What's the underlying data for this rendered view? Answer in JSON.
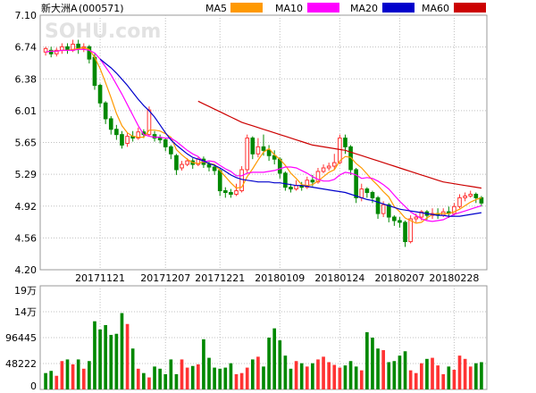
{
  "header": {
    "stock_name": "新大洲A",
    "stock_code": "(000571)",
    "watermark": "SOHU.com"
  },
  "legend": [
    {
      "label": "MA5",
      "color": "#ff9900"
    },
    {
      "label": "MA10",
      "color": "#ff00ff"
    },
    {
      "label": "MA20",
      "color": "#0000cc"
    },
    {
      "label": "MA60",
      "color": "#cc0000"
    }
  ],
  "colors": {
    "up": "#ff3333",
    "down": "#008800",
    "grid": "#c0c0c0"
  },
  "chart_data": [
    {
      "type": "candlestick",
      "title": "新大洲A (000571)",
      "ylim": [
        4.2,
        7.1
      ],
      "y_ticks": [
        "7.10",
        "6.74",
        "6.38",
        "6.01",
        "5.65",
        "5.29",
        "4.92",
        "4.56",
        "4.20"
      ],
      "x_tick_labels": [
        {
          "label": "20171121",
          "index": 10
        },
        {
          "label": "20171207",
          "index": 22
        },
        {
          "label": "20171221",
          "index": 32
        },
        {
          "label": "20180109",
          "index": 43
        },
        {
          "label": "20180124",
          "index": 54
        },
        {
          "label": "20180207",
          "index": 65
        },
        {
          "label": "20180228",
          "index": 75
        }
      ],
      "candles": [
        [
          6.68,
          6.72,
          6.64,
          6.74
        ],
        [
          6.7,
          6.66,
          6.62,
          6.74
        ],
        [
          6.66,
          6.7,
          6.63,
          6.73
        ],
        [
          6.7,
          6.74,
          6.66,
          6.78
        ],
        [
          6.74,
          6.7,
          6.66,
          6.78
        ],
        [
          6.7,
          6.77,
          6.68,
          6.82
        ],
        [
          6.77,
          6.72,
          6.66,
          6.82
        ],
        [
          6.72,
          6.74,
          6.68,
          6.78
        ],
        [
          6.74,
          6.6,
          6.55,
          6.76
        ],
        [
          6.62,
          6.3,
          6.25,
          6.66
        ],
        [
          6.3,
          6.1,
          6.05,
          6.32
        ],
        [
          6.1,
          5.92,
          5.86,
          6.12
        ],
        [
          5.92,
          5.8,
          5.74,
          5.95
        ],
        [
          5.8,
          5.74,
          5.68,
          5.85
        ],
        [
          5.74,
          5.62,
          5.58,
          5.78
        ],
        [
          5.64,
          5.72,
          5.6,
          5.76
        ],
        [
          5.72,
          5.7,
          5.66,
          5.78
        ],
        [
          5.7,
          5.77,
          5.68,
          5.82
        ],
        [
          5.77,
          5.74,
          5.7,
          5.8
        ],
        [
          5.74,
          6.02,
          5.72,
          6.06
        ],
        [
          5.74,
          5.7,
          5.66,
          5.78
        ],
        [
          5.7,
          5.68,
          5.64,
          5.74
        ],
        [
          5.68,
          5.6,
          5.55,
          5.7
        ],
        [
          5.6,
          5.52,
          5.46,
          5.62
        ],
        [
          5.5,
          5.34,
          5.28,
          5.52
        ],
        [
          5.36,
          5.4,
          5.33,
          5.44
        ],
        [
          5.4,
          5.44,
          5.38,
          5.47
        ],
        [
          5.44,
          5.4,
          5.35,
          5.47
        ],
        [
          5.4,
          5.46,
          5.38,
          5.48
        ],
        [
          5.46,
          5.4,
          5.36,
          5.49
        ],
        [
          5.4,
          5.37,
          5.32,
          5.43
        ],
        [
          5.37,
          5.33,
          5.28,
          5.4
        ],
        [
          5.33,
          5.1,
          5.04,
          5.36
        ],
        [
          5.1,
          5.08,
          5.02,
          5.14
        ],
        [
          5.08,
          5.06,
          5.02,
          5.12
        ],
        [
          5.06,
          5.1,
          5.04,
          5.18
        ],
        [
          5.1,
          5.34,
          5.08,
          5.38
        ],
        [
          5.34,
          5.7,
          5.3,
          5.74
        ],
        [
          5.7,
          5.52,
          5.46,
          5.72
        ],
        [
          5.52,
          5.6,
          5.48,
          5.7
        ],
        [
          5.6,
          5.56,
          5.5,
          5.74
        ],
        [
          5.56,
          5.5,
          5.44,
          5.62
        ],
        [
          5.5,
          5.46,
          5.4,
          5.56
        ],
        [
          5.46,
          5.3,
          5.24,
          5.48
        ],
        [
          5.3,
          5.14,
          5.1,
          5.32
        ],
        [
          5.14,
          5.12,
          5.08,
          5.18
        ],
        [
          5.12,
          5.16,
          5.1,
          5.22
        ],
        [
          5.16,
          5.14,
          5.1,
          5.2
        ],
        [
          5.14,
          5.22,
          5.12,
          5.26
        ],
        [
          5.22,
          5.2,
          5.15,
          5.28
        ],
        [
          5.2,
          5.32,
          5.18,
          5.36
        ],
        [
          5.32,
          5.36,
          5.3,
          5.4
        ],
        [
          5.36,
          5.38,
          5.33,
          5.42
        ],
        [
          5.38,
          5.42,
          5.34,
          5.52
        ],
        [
          5.42,
          5.7,
          5.4,
          5.74
        ],
        [
          5.7,
          5.6,
          5.52,
          5.74
        ],
        [
          5.6,
          5.34,
          5.28,
          5.62
        ],
        [
          5.34,
          5.02,
          4.96,
          5.36
        ],
        [
          5.02,
          5.12,
          4.98,
          5.18
        ],
        [
          5.12,
          5.08,
          5.02,
          5.14
        ],
        [
          5.08,
          5.02,
          4.96,
          5.1
        ],
        [
          5.02,
          4.84,
          4.78,
          5.04
        ],
        [
          4.84,
          4.94,
          4.8,
          4.98
        ],
        [
          4.94,
          4.8,
          4.74,
          4.96
        ],
        [
          4.8,
          4.76,
          4.7,
          4.82
        ],
        [
          4.76,
          4.74,
          4.68,
          4.8
        ],
        [
          4.74,
          4.52,
          4.46,
          4.76
        ],
        [
          4.52,
          4.78,
          4.5,
          4.82
        ],
        [
          4.78,
          4.8,
          4.74,
          4.84
        ],
        [
          4.8,
          4.86,
          4.76,
          4.88
        ],
        [
          4.86,
          4.82,
          4.77,
          4.88
        ],
        [
          4.82,
          4.84,
          4.78,
          4.9
        ],
        [
          4.84,
          4.82,
          4.78,
          4.9
        ],
        [
          4.82,
          4.86,
          4.8,
          4.9
        ],
        [
          4.86,
          4.84,
          4.79,
          4.92
        ],
        [
          4.84,
          4.92,
          4.82,
          4.96
        ],
        [
          4.92,
          5.02,
          4.9,
          5.06
        ],
        [
          5.02,
          5.04,
          4.98,
          5.08
        ],
        [
          5.04,
          5.06,
          5.02,
          5.1
        ],
        [
          5.06,
          5.02,
          4.96,
          5.08
        ],
        [
          5.02,
          4.96,
          4.92,
          5.04
        ]
      ],
      "ma5": [
        6.68,
        6.69,
        6.69,
        6.7,
        6.7,
        6.71,
        6.72,
        6.73,
        6.71,
        6.62,
        6.49,
        6.33,
        6.16,
        5.98,
        5.84,
        5.76,
        5.72,
        5.71,
        5.71,
        5.79,
        5.79,
        5.78,
        5.75,
        5.71,
        5.57,
        5.51,
        5.46,
        5.42,
        5.41,
        5.43,
        5.41,
        5.4,
        5.33,
        5.26,
        5.19,
        5.13,
        5.14,
        5.26,
        5.35,
        5.45,
        5.54,
        5.58,
        5.51,
        5.46,
        5.39,
        5.3,
        5.24,
        5.17,
        5.16,
        5.17,
        5.21,
        5.26,
        5.31,
        5.34,
        5.44,
        5.49,
        5.48,
        5.41,
        5.36,
        5.29,
        5.22,
        5.16,
        5.09,
        5.03,
        4.92,
        4.86,
        4.79,
        4.76,
        4.73,
        4.74,
        4.79,
        4.83,
        4.84,
        4.84,
        4.84,
        4.86,
        4.89,
        4.93,
        4.97,
        5.0,
        5.02
      ],
      "ma10": [
        6.68,
        6.69,
        6.69,
        6.7,
        6.7,
        6.7,
        6.71,
        6.71,
        6.7,
        6.67,
        6.6,
        6.51,
        6.42,
        6.31,
        6.2,
        6.08,
        5.96,
        5.84,
        5.74,
        5.72,
        5.71,
        5.71,
        5.7,
        5.7,
        5.66,
        5.61,
        5.56,
        5.52,
        5.49,
        5.43,
        5.44,
        5.43,
        5.39,
        5.35,
        5.32,
        5.27,
        5.27,
        5.3,
        5.31,
        5.31,
        5.31,
        5.32,
        5.33,
        5.35,
        5.37,
        5.37,
        5.36,
        5.33,
        5.3,
        5.26,
        5.23,
        5.21,
        5.21,
        5.23,
        5.28,
        5.31,
        5.3,
        5.28,
        5.24,
        5.25,
        5.24,
        5.21,
        5.17,
        5.12,
        5.05,
        4.98,
        4.92,
        4.86,
        4.82,
        4.78,
        4.76,
        4.75,
        4.76,
        4.77,
        4.8,
        4.83,
        4.85,
        4.87,
        4.89,
        4.91,
        4.93
      ],
      "ma20": [
        null,
        null,
        null,
        null,
        null,
        null,
        null,
        null,
        null,
        null,
        6.6,
        6.55,
        6.5,
        6.44,
        6.37,
        6.3,
        6.22,
        6.14,
        6.07,
        6.01,
        5.94,
        5.85,
        5.76,
        5.68,
        5.62,
        5.57,
        5.52,
        5.48,
        5.46,
        5.44,
        5.41,
        5.39,
        5.36,
        5.32,
        5.28,
        5.25,
        5.23,
        5.22,
        5.21,
        5.2,
        5.2,
        5.2,
        5.19,
        5.19,
        5.18,
        5.17,
        5.16,
        5.16,
        5.15,
        5.14,
        5.13,
        5.12,
        5.11,
        5.1,
        5.09,
        5.08,
        5.06,
        5.04,
        5.02,
        5.0,
        4.99,
        4.97,
        4.95,
        4.93,
        4.91,
        4.89,
        4.88,
        4.87,
        4.86,
        4.85,
        4.84,
        4.83,
        4.82,
        4.82,
        4.81,
        4.81,
        4.81,
        4.82,
        4.83,
        4.84,
        4.85
      ],
      "ma60": [
        null,
        null,
        null,
        null,
        null,
        null,
        null,
        null,
        null,
        null,
        null,
        null,
        null,
        null,
        null,
        null,
        null,
        null,
        null,
        null,
        null,
        null,
        null,
        null,
        null,
        null,
        null,
        null,
        6.12,
        6.09,
        6.06,
        6.03,
        6.0,
        5.97,
        5.94,
        5.91,
        5.88,
        5.86,
        5.84,
        5.82,
        5.8,
        5.78,
        5.76,
        5.74,
        5.72,
        5.7,
        5.68,
        5.66,
        5.64,
        5.62,
        5.61,
        5.6,
        5.59,
        5.58,
        5.57,
        5.56,
        5.54,
        5.52,
        5.5,
        5.48,
        5.46,
        5.44,
        5.42,
        5.4,
        5.38,
        5.36,
        5.34,
        5.32,
        5.3,
        5.28,
        5.26,
        5.24,
        5.22,
        5.2,
        5.19,
        5.18,
        5.17,
        5.16,
        5.15,
        5.14,
        5.13
      ]
    },
    {
      "type": "bar",
      "title": "",
      "ylim": [
        0,
        190000
      ],
      "y_ticks": [
        "19万",
        "14万",
        "96445",
        "48222",
        "0"
      ],
      "volumes": [
        30000,
        34000,
        25000,
        52000,
        55000,
        46000,
        55000,
        38000,
        52000,
        125000,
        110000,
        118000,
        100000,
        102000,
        140000,
        120000,
        75000,
        38000,
        30000,
        22000,
        42000,
        38000,
        28000,
        55000,
        28000,
        55000,
        40000,
        43000,
        46000,
        92000,
        58000,
        40000,
        38000,
        40000,
        48000,
        28000,
        30000,
        40000,
        55000,
        60000,
        42000,
        95000,
        112000,
        90000,
        62000,
        38000,
        52000,
        48000,
        42000,
        48000,
        55000,
        60000,
        50000,
        45000,
        40000,
        44000,
        52000,
        42000,
        35000,
        105000,
        95000,
        75000,
        72000,
        50000,
        52000,
        62000,
        70000,
        35000,
        30000,
        48000,
        56000,
        58000,
        44000,
        28000,
        42000,
        36000,
        62000,
        56000,
        42000,
        48000,
        50000
      ],
      "volume_directions": [
        0,
        0,
        1,
        1,
        0,
        1,
        0,
        1,
        0,
        0,
        0,
        0,
        0,
        0,
        0,
        1,
        0,
        1,
        0,
        1,
        0,
        0,
        0,
        0,
        0,
        1,
        1,
        0,
        1,
        0,
        0,
        0,
        0,
        0,
        0,
        1,
        1,
        1,
        0,
        1,
        0,
        0,
        0,
        0,
        0,
        0,
        1,
        0,
        1,
        0,
        1,
        1,
        1,
        1,
        1,
        0,
        0,
        0,
        1,
        0,
        0,
        0,
        1,
        0,
        0,
        0,
        0,
        1,
        1,
        1,
        0,
        1,
        1,
        1,
        0,
        1,
        1,
        1,
        1,
        0,
        0
      ]
    }
  ]
}
